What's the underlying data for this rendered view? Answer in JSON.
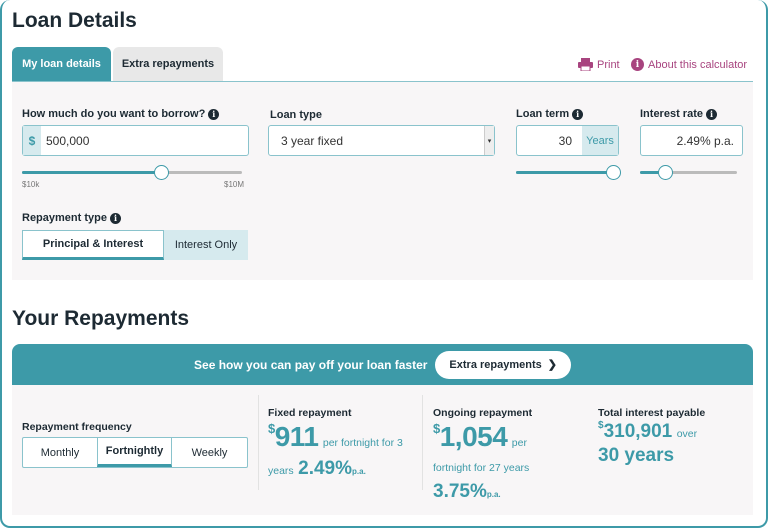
{
  "loan_details": {
    "title": "Loan Details",
    "tabs": [
      {
        "label": "My loan details",
        "active": true
      },
      {
        "label": "Extra repayments",
        "active": false
      }
    ],
    "print_label": "Print",
    "about_label": "About this calculator",
    "borrow": {
      "label": "How much do you want to borrow?",
      "prefix": "$",
      "value": "500,000",
      "min_label": "$10k",
      "max_label": "$10M",
      "slider_percent": 63
    },
    "loan_type": {
      "label": "Loan type",
      "value": "3 year fixed"
    },
    "loan_term": {
      "label": "Loan term",
      "value": "30",
      "suffix": "Years",
      "slider_percent": 100
    },
    "interest_rate": {
      "label": "Interest rate",
      "value": "2.49% p.a.",
      "slider_percent": 26
    },
    "repayment_type": {
      "label": "Repayment type",
      "options": [
        "Principal & Interest",
        "Interest Only"
      ],
      "selected": "Principal & Interest"
    }
  },
  "repayments": {
    "title": "Your Repayments",
    "banner_text": "See how you can pay off your loan faster",
    "banner_button": "Extra repayments",
    "frequency": {
      "label": "Repayment frequency",
      "options": [
        "Monthly",
        "Fortnightly",
        "Weekly"
      ],
      "selected": "Fortnightly"
    },
    "fixed": {
      "label": "Fixed repayment",
      "currency": "$",
      "amount": "911",
      "text1": "per fortnight for 3",
      "text2": "years",
      "rate": "2.49%",
      "pa": "p.a."
    },
    "ongoing": {
      "label": "Ongoing repayment",
      "currency": "$",
      "amount": "1,054",
      "text1": "per",
      "text2": "fortnight for 27 years",
      "rate": "3.75%",
      "pa": "p.a."
    },
    "total": {
      "label": "Total interest payable",
      "currency": "$",
      "amount": "310,901",
      "text1": "over",
      "years": "30 years"
    }
  },
  "colors": {
    "accent": "#3d9aa8",
    "link": "#a8447f",
    "panel": "#f8f6f7"
  }
}
